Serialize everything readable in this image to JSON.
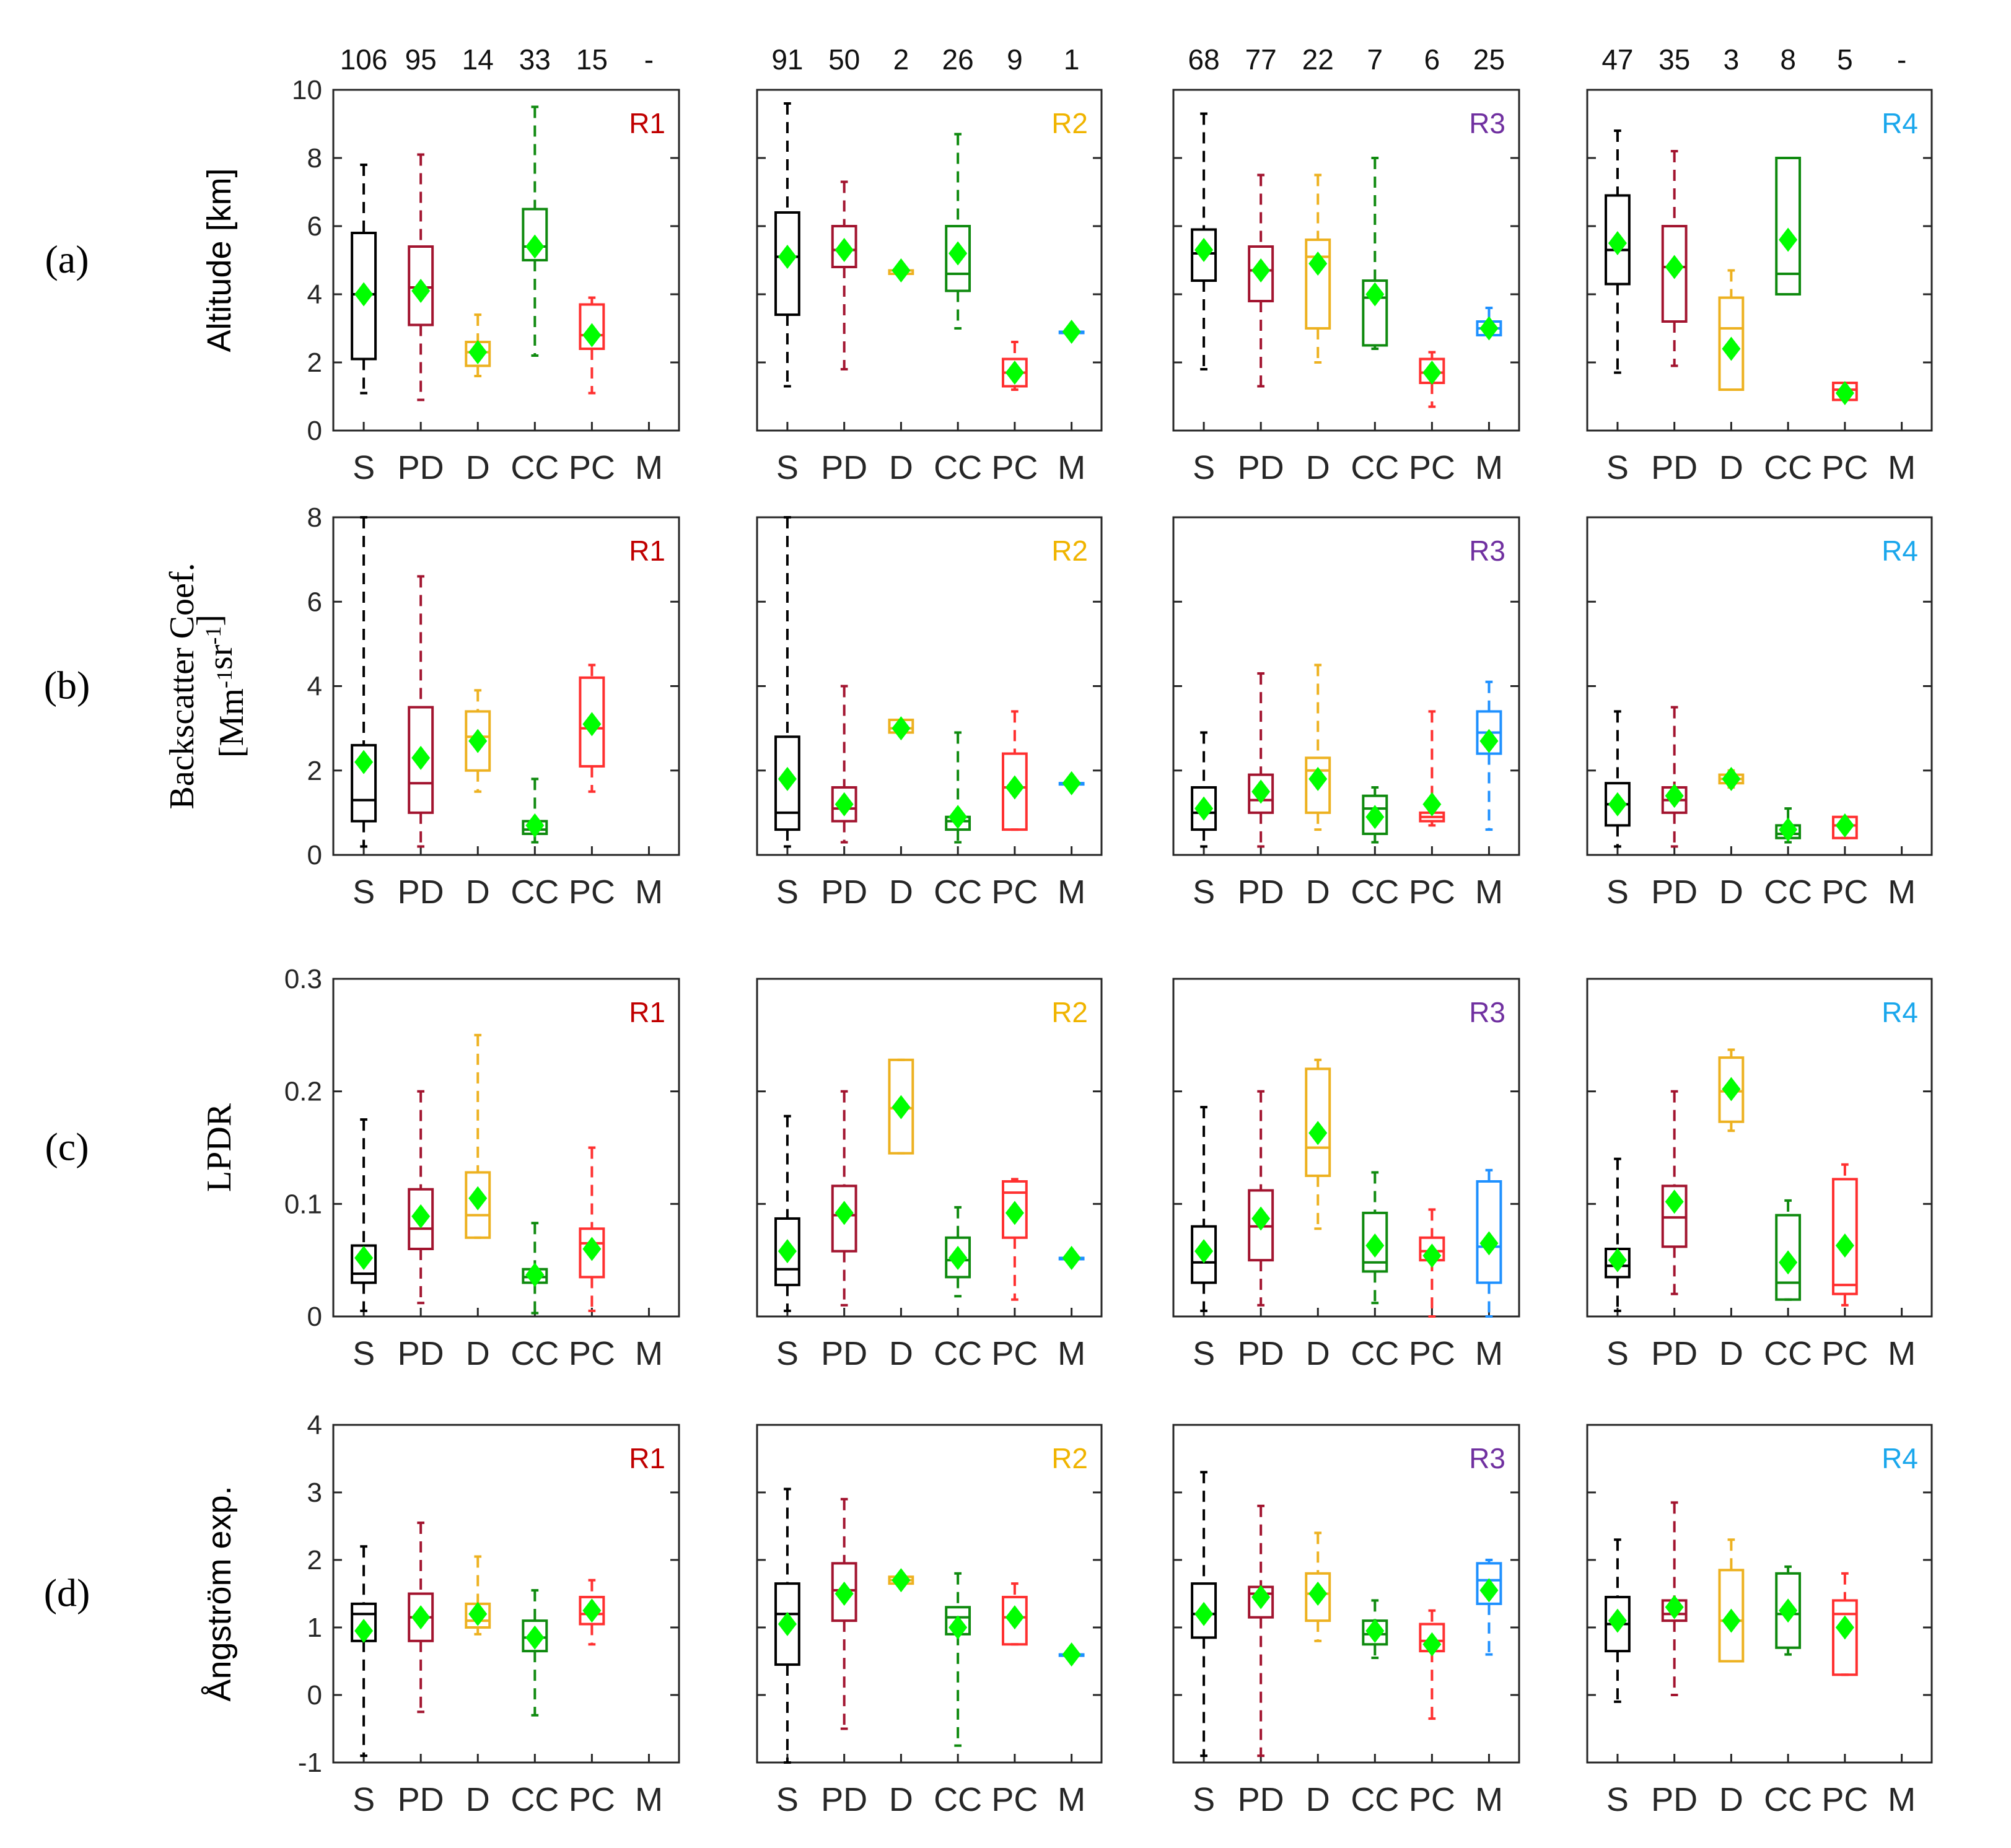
{
  "colors": {
    "S": "#000000",
    "PD": "#a2142f",
    "D": "#edb120",
    "CC": "#0f8a0f",
    "PC": "#ff3030",
    "M": "#1e90ff",
    "mean": "#00ff00",
    "R1": "#c00000",
    "R2": "#f0b400",
    "R3": "#7030a0",
    "R4": "#1aa7ec"
  },
  "chart_data": {
    "type": "boxplot",
    "categories": [
      "S",
      "PD",
      "D",
      "CC",
      "PC",
      "M"
    ],
    "regions": [
      "R1",
      "R2",
      "R3",
      "R4"
    ],
    "counts": [
      [
        "106",
        "95",
        "14",
        "33",
        "15",
        "-"
      ],
      [
        "91",
        "50",
        "2",
        "26",
        "9",
        "1"
      ],
      [
        "68",
        "77",
        "22",
        "7",
        "6",
        "25"
      ],
      [
        "47",
        "35",
        "3",
        "8",
        "5",
        "-"
      ]
    ],
    "panels": [
      {
        "label": "(a)",
        "ylabel": "Altitude [km]",
        "ylim": [
          0,
          10
        ],
        "ticks": [
          "0",
          "2",
          "4",
          "6",
          "8",
          "10"
        ],
        "tick_values": [
          0,
          2,
          4,
          6,
          8,
          10
        ],
        "boxes": [
          [
            [
              1.1,
              2.1,
              4.0,
              5.8,
              7.8,
              4.0
            ],
            [
              0.9,
              3.1,
              4.2,
              5.4,
              8.1,
              4.1
            ],
            [
              1.6,
              1.9,
              2.3,
              2.6,
              3.4,
              2.3
            ],
            [
              2.2,
              5.0,
              5.4,
              6.5,
              9.5,
              5.4
            ],
            [
              1.1,
              2.4,
              2.8,
              3.7,
              3.9,
              2.8
            ],
            null
          ],
          [
            [
              1.3,
              3.4,
              5.1,
              6.4,
              9.6,
              5.1
            ],
            [
              1.8,
              4.8,
              5.3,
              6.0,
              7.3,
              5.3
            ],
            [
              4.6,
              4.6,
              4.7,
              4.7,
              4.7,
              4.7
            ],
            [
              3.0,
              4.1,
              4.6,
              6.0,
              8.7,
              5.2
            ],
            [
              1.2,
              1.3,
              1.7,
              2.1,
              2.6,
              1.7
            ],
            [
              2.9,
              2.9,
              2.9,
              2.9,
              2.9,
              2.9
            ]
          ],
          [
            [
              1.8,
              4.4,
              5.2,
              5.9,
              9.3,
              5.3
            ],
            [
              1.3,
              3.8,
              4.7,
              5.4,
              7.5,
              4.7
            ],
            [
              2.0,
              3.0,
              5.1,
              5.6,
              7.5,
              4.9
            ],
            [
              2.4,
              2.5,
              3.9,
              4.4,
              8.0,
              4.0
            ],
            [
              0.7,
              1.4,
              1.7,
              2.1,
              2.3,
              1.7
            ],
            [
              2.8,
              2.8,
              3.0,
              3.2,
              3.6,
              3.0
            ]
          ],
          [
            [
              1.7,
              4.3,
              5.3,
              6.9,
              8.8,
              5.5
            ],
            [
              1.9,
              3.2,
              4.8,
              6.0,
              8.2,
              4.8
            ],
            [
              1.2,
              1.2,
              3.0,
              3.9,
              4.7,
              2.4
            ],
            [
              4.0,
              4.0,
              4.6,
              8.0,
              8.0,
              5.6
            ],
            [
              0.9,
              0.9,
              1.2,
              1.4,
              1.4,
              1.1
            ],
            null
          ]
        ]
      },
      {
        "label": "(b)",
        "ylabel": "Backscatter Coef.",
        "ylabel2": "[Mm-1sr-1]",
        "ylim": [
          0,
          8
        ],
        "ticks": [
          "0",
          "2",
          "4",
          "6",
          "8"
        ],
        "tick_values": [
          0,
          2,
          4,
          6,
          8
        ],
        "boxes": [
          [
            [
              0.2,
              0.8,
              1.3,
              2.6,
              8.0,
              2.2
            ],
            [
              0.2,
              1.0,
              1.7,
              3.5,
              6.6,
              2.3
            ],
            [
              1.5,
              2.0,
              2.8,
              3.4,
              3.9,
              2.7
            ],
            [
              0.3,
              0.5,
              0.6,
              0.8,
              1.8,
              0.7
            ],
            [
              1.5,
              2.1,
              3.0,
              4.2,
              4.5,
              3.1
            ],
            null
          ],
          [
            [
              0.2,
              0.6,
              1.0,
              2.8,
              8.0,
              1.8
            ],
            [
              0.3,
              0.8,
              1.1,
              1.6,
              4.0,
              1.2
            ],
            [
              2.9,
              2.9,
              3.0,
              3.2,
              3.2,
              3.0
            ],
            [
              0.3,
              0.6,
              0.8,
              0.9,
              2.9,
              0.9
            ],
            [
              0.6,
              0.6,
              1.6,
              2.4,
              3.4,
              1.6
            ],
            [
              1.7,
              1.7,
              1.7,
              1.7,
              1.7,
              1.7
            ]
          ],
          [
            [
              0.2,
              0.6,
              1.0,
              1.6,
              2.9,
              1.1
            ],
            [
              0.2,
              1.0,
              1.3,
              1.9,
              4.3,
              1.5
            ],
            [
              0.6,
              1.0,
              2.0,
              2.3,
              4.5,
              1.8
            ],
            [
              0.3,
              0.5,
              1.1,
              1.4,
              1.6,
              0.9
            ],
            [
              0.7,
              0.8,
              0.9,
              1.0,
              3.4,
              1.2
            ],
            [
              0.6,
              2.4,
              2.9,
              3.4,
              4.1,
              2.7
            ]
          ],
          [
            [
              0.2,
              0.7,
              1.2,
              1.7,
              3.4,
              1.2
            ],
            [
              0.2,
              1.0,
              1.3,
              1.6,
              3.5,
              1.4
            ],
            [
              1.6,
              1.7,
              1.8,
              1.9,
              2.0,
              1.8
            ],
            [
              0.3,
              0.4,
              0.5,
              0.7,
              1.1,
              0.6
            ],
            [
              0.4,
              0.4,
              0.7,
              0.9,
              0.9,
              0.7
            ],
            null
          ]
        ]
      },
      {
        "label": "(c)",
        "ylabel": "LPDR",
        "ylim": [
          0,
          0.3
        ],
        "ticks": [
          "0",
          "0.1",
          "0.2",
          "0.3"
        ],
        "tick_values": [
          0,
          0.1,
          0.2,
          0.3
        ],
        "boxes": [
          [
            [
              0.005,
              0.03,
              0.038,
              0.063,
              0.175,
              0.052
            ],
            [
              0.012,
              0.06,
              0.078,
              0.113,
              0.2,
              0.089
            ],
            [
              0.07,
              0.07,
              0.09,
              0.128,
              0.25,
              0.105
            ],
            [
              0.003,
              0.03,
              0.035,
              0.042,
              0.083,
              0.037
            ],
            [
              0.005,
              0.035,
              0.065,
              0.078,
              0.15,
              0.06
            ],
            null
          ],
          [
            [
              0.005,
              0.028,
              0.042,
              0.087,
              0.178,
              0.058
            ],
            [
              0.01,
              0.058,
              0.09,
              0.116,
              0.2,
              0.092
            ],
            [
              0.145,
              0.145,
              0.185,
              0.228,
              0.228,
              0.186
            ],
            [
              0.018,
              0.035,
              0.05,
              0.07,
              0.097,
              0.052
            ],
            [
              0.015,
              0.07,
              0.11,
              0.12,
              0.122,
              0.092
            ],
            [
              0.052,
              0.052,
              0.052,
              0.052,
              0.052,
              0.052
            ]
          ],
          [
            [
              0.005,
              0.03,
              0.048,
              0.08,
              0.186,
              0.058
            ],
            [
              0.01,
              0.05,
              0.08,
              0.112,
              0.2,
              0.087
            ],
            [
              0.078,
              0.125,
              0.15,
              0.22,
              0.228,
              0.163
            ],
            [
              0.012,
              0.04,
              0.048,
              0.092,
              0.128,
              0.063
            ],
            [
              0.0,
              0.05,
              0.058,
              0.07,
              0.095,
              0.054
            ],
            [
              0.0,
              0.03,
              0.062,
              0.12,
              0.13,
              0.065
            ]
          ],
          [
            [
              0.005,
              0.035,
              0.045,
              0.06,
              0.14,
              0.05
            ],
            [
              0.02,
              0.062,
              0.088,
              0.116,
              0.2,
              0.102
            ],
            [
              0.165,
              0.173,
              0.2,
              0.23,
              0.237,
              0.202
            ],
            [
              0.015,
              0.015,
              0.03,
              0.09,
              0.103,
              0.048
            ],
            [
              0.01,
              0.02,
              0.028,
              0.122,
              0.135,
              0.063
            ],
            null
          ]
        ]
      },
      {
        "label": "(d)",
        "ylabel": "Ångström exp.",
        "ylim": [
          -1,
          4
        ],
        "ticks": [
          "-1",
          "0",
          "1",
          "2",
          "3",
          "4"
        ],
        "tick_values": [
          -1,
          0,
          1,
          2,
          3,
          4
        ],
        "boxes": [
          [
            [
              -0.9,
              0.8,
              1.2,
              1.35,
              2.2,
              0.95
            ],
            [
              -0.25,
              0.8,
              1.15,
              1.5,
              2.55,
              1.15
            ],
            [
              0.9,
              1.0,
              1.1,
              1.35,
              2.05,
              1.2
            ],
            [
              -0.3,
              0.65,
              0.85,
              1.1,
              1.55,
              0.85
            ],
            [
              0.75,
              1.05,
              1.2,
              1.45,
              1.7,
              1.25
            ],
            null
          ],
          [
            [
              -1.0,
              0.45,
              1.2,
              1.65,
              3.05,
              1.05
            ],
            [
              -0.5,
              1.1,
              1.55,
              1.95,
              2.9,
              1.5
            ],
            [
              1.65,
              1.65,
              1.7,
              1.75,
              1.75,
              1.7
            ],
            [
              -0.75,
              0.9,
              1.15,
              1.3,
              1.8,
              1.0
            ],
            [
              0.75,
              0.75,
              1.15,
              1.45,
              1.65,
              1.15
            ],
            [
              0.6,
              0.6,
              0.6,
              0.6,
              0.6,
              0.6
            ]
          ],
          [
            [
              -0.9,
              0.85,
              1.2,
              1.65,
              3.3,
              1.2
            ],
            [
              -0.9,
              1.15,
              1.5,
              1.6,
              2.8,
              1.45
            ],
            [
              0.8,
              1.1,
              1.5,
              1.8,
              2.4,
              1.5
            ],
            [
              0.55,
              0.75,
              0.9,
              1.1,
              1.4,
              0.95
            ],
            [
              -0.35,
              0.65,
              0.8,
              1.05,
              1.25,
              0.75
            ],
            [
              0.6,
              1.35,
              1.7,
              1.95,
              2.0,
              1.55
            ]
          ],
          [
            [
              -0.1,
              0.65,
              1.05,
              1.45,
              2.3,
              1.1
            ],
            [
              0.0,
              1.1,
              1.2,
              1.4,
              2.85,
              1.3
            ],
            [
              0.5,
              0.5,
              1.1,
              1.85,
              2.3,
              1.1
            ],
            [
              0.6,
              0.7,
              1.2,
              1.8,
              1.9,
              1.25
            ],
            [
              0.3,
              0.3,
              1.2,
              1.4,
              1.8,
              1.0
            ],
            null
          ]
        ]
      }
    ]
  }
}
